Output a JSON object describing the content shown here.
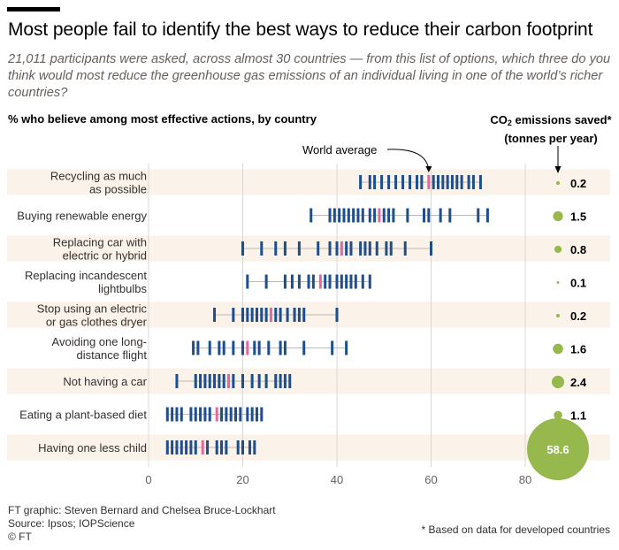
{
  "header": {
    "title": "Most people fail to identify the best ways to reduce their carbon footprint",
    "subtitle": "21,011 participants were asked, across almost 30 countries  — from this list of options, which three do you think would most reduce the greenhouse gas emissions of an individual living in one of the world’s richer countries?"
  },
  "chart_heading": "% who believe among most effective actions, by country",
  "co2_heading": {
    "line1_pre": "CO",
    "line1_sub": "2",
    "line1_post": " emissions saved*",
    "line2": "(tonnes per year)"
  },
  "footer": {
    "credit": "FT graphic: Steven Bernard and Chelsea Bruce-Lockhart",
    "source": "Source: Ipsos; IOPScience",
    "copyright": "© FT",
    "footnote": "* Based on data for developed countries"
  },
  "colors": {
    "country_mark": "#1f4e8c",
    "average_mark": "#e6679b",
    "bubble": "#96b84c",
    "band": "#fbf2ea",
    "range_line": "#bfb9b3",
    "grid": "#dcd7d2"
  },
  "chart_data": {
    "type": "strip",
    "title": "Most people fail to identify the best ways to reduce their carbon footprint",
    "xlabel": "% who believe among most effective actions, by country",
    "xlim": [
      0,
      80
    ],
    "x_ticks": [
      0,
      20,
      40,
      60,
      80
    ],
    "annotation": "World average",
    "rows": [
      {
        "label": [
          "Recycling as much",
          "as possible"
        ],
        "world_average": 59.5,
        "co2_saved": 0.2,
        "co2_label": "0.2",
        "countries": [
          45,
          47,
          48,
          49.5,
          51,
          52.5,
          54,
          55.5,
          57,
          58,
          60.5,
          61.5,
          62.5,
          63.5,
          64.5,
          65.5,
          66.5,
          68,
          69,
          70.5
        ]
      },
      {
        "label": [
          "Buying renewable energy"
        ],
        "world_average": 49,
        "co2_saved": 1.5,
        "co2_label": "1.5",
        "countries": [
          34.5,
          38.5,
          39.5,
          40.5,
          41.5,
          42.5,
          43.5,
          44.5,
          45.5,
          47,
          48,
          50,
          51,
          52,
          55,
          58.5,
          59.5,
          62,
          64,
          70,
          72
        ]
      },
      {
        "label": [
          "Replacing car with",
          "electric or hybrid"
        ],
        "world_average": 41,
        "co2_saved": 0.8,
        "co2_label": "0.8",
        "countries": [
          20,
          24,
          27,
          29,
          32,
          36,
          38.5,
          40,
          42,
          43,
          45,
          46,
          47,
          48.5,
          50.5,
          51.5,
          54.5,
          60
        ]
      },
      {
        "label": [
          "Replacing incandescent",
          "lightbulbs"
        ],
        "world_average": 36.5,
        "co2_saved": 0.1,
        "co2_label": "0.1",
        "countries": [
          21,
          25,
          29,
          30.5,
          32,
          34,
          35,
          37.5,
          38.5,
          40,
          41,
          42,
          43,
          44,
          45.5,
          47
        ]
      },
      {
        "label": [
          "Stop using an electric",
          "or gas clothes dryer"
        ],
        "world_average": 26,
        "co2_saved": 0.2,
        "co2_label": "0.2",
        "countries": [
          14,
          18,
          20,
          21,
          22,
          23,
          24,
          25,
          27,
          28,
          29.5,
          31,
          32,
          33,
          40
        ]
      },
      {
        "label": [
          "Avoiding one long-",
          "distance flight"
        ],
        "world_average": 21,
        "co2_saved": 1.6,
        "co2_label": "1.6",
        "countries": [
          9.5,
          10.5,
          13,
          15,
          16,
          18,
          20,
          22.5,
          23.5,
          25.5,
          28,
          29,
          33,
          39,
          42
        ]
      },
      {
        "label": [
          "Not having a car"
        ],
        "world_average": 17,
        "co2_saved": 2.4,
        "co2_label": "2.4",
        "countries": [
          6,
          10,
          11,
          12,
          13,
          14,
          15,
          16,
          18,
          20,
          22,
          23.5,
          25,
          27,
          28,
          29,
          30
        ]
      },
      {
        "label": [
          "Eating a plant-based diet"
        ],
        "world_average": 14.5,
        "co2_saved": 1.1,
        "co2_label": "1.1",
        "countries": [
          4,
          5,
          6,
          7,
          9,
          10,
          11,
          12,
          13,
          15.5,
          16.5,
          17.5,
          18.5,
          19.5,
          21,
          22,
          23,
          24
        ]
      },
      {
        "label": [
          "Having one less child"
        ],
        "world_average": 11.5,
        "co2_saved": 58.6,
        "co2_label": "58.6",
        "countries": [
          4,
          5,
          6,
          7,
          8,
          9,
          10,
          12.5,
          14.5,
          15.5,
          16.5,
          19,
          20,
          21.5,
          22.5
        ]
      }
    ]
  }
}
